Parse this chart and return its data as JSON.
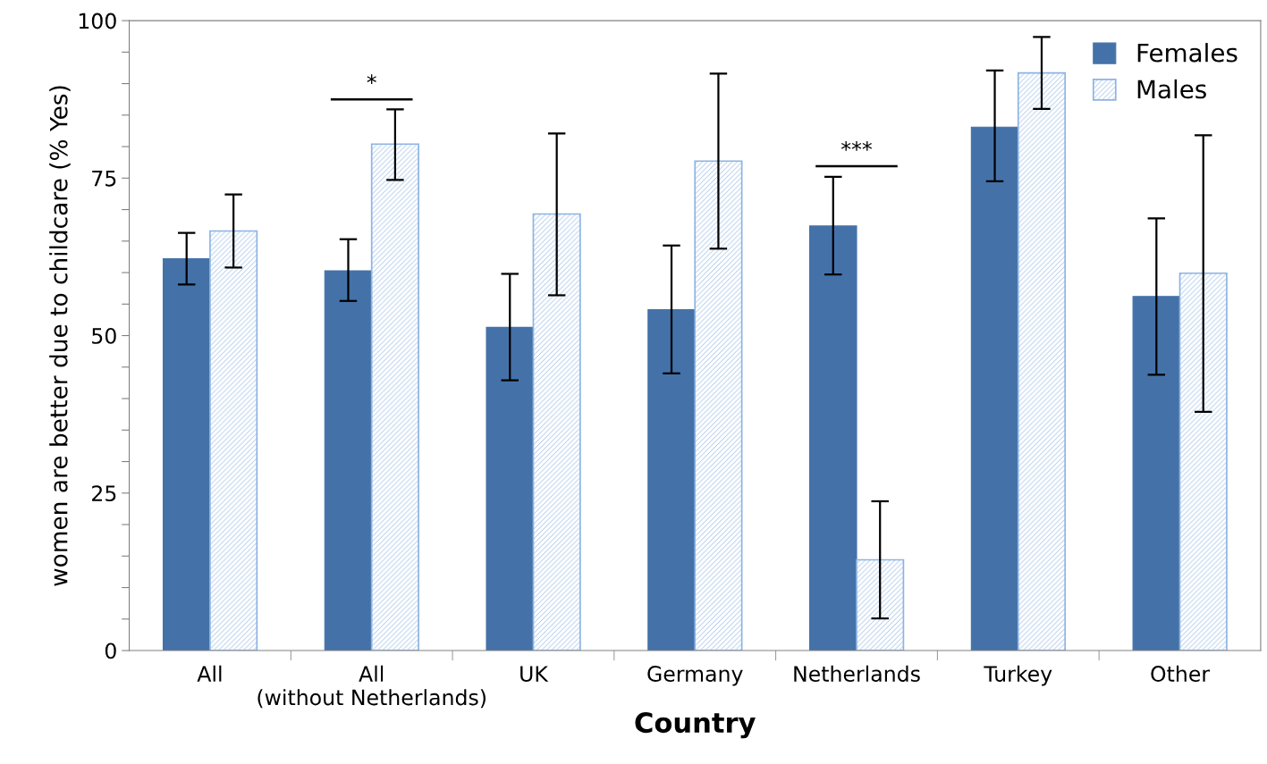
{
  "chart_data": {
    "type": "bar",
    "xlabel": "Country",
    "ylabel": "women are better due to childcare (% Yes)",
    "categories": [
      "All",
      "All\n(without Netherlands)",
      "UK",
      "Germany",
      "Netherlands",
      "Turkey",
      "Other"
    ],
    "series": [
      {
        "name": "Females",
        "color": "#4472a8",
        "values": [
          62.2,
          60.3,
          51.3,
          54.1,
          67.4,
          83.1,
          56.2
        ],
        "errors": [
          [
            58.1,
            66.3
          ],
          [
            55.5,
            65.3
          ],
          [
            42.9,
            59.8
          ],
          [
            44.0,
            64.3
          ],
          [
            59.7,
            75.2
          ],
          [
            74.5,
            92.1
          ],
          [
            43.8,
            68.6
          ]
        ]
      },
      {
        "name": "Males",
        "color": "#8db3e2",
        "values": [
          66.6,
          80.4,
          69.3,
          77.7,
          14.4,
          91.7,
          59.9
        ],
        "errors": [
          [
            60.8,
            72.4
          ],
          [
            74.7,
            85.9
          ],
          [
            56.4,
            82.1
          ],
          [
            63.8,
            91.6
          ],
          [
            5.1,
            23.7
          ],
          [
            86.0,
            97.4
          ],
          [
            37.9,
            81.8
          ]
        ]
      }
    ],
    "ylim": [
      0,
      100
    ],
    "yticks": [
      0,
      {
        "value": 5,
        "label": null
      },
      {
        "value": 10,
        "label": null
      },
      {
        "value": 15,
        "label": null
      },
      {
        "value": 20,
        "label": null
      },
      25,
      {
        "value": 30,
        "label": null
      },
      {
        "value": 35,
        "label": null
      },
      {
        "value": 40,
        "label": null
      },
      {
        "value": 45,
        "label": null
      },
      50,
      {
        "value": 55,
        "label": null
      },
      {
        "value": 60,
        "label": null
      },
      {
        "value": 65,
        "label": null
      },
      {
        "value": 70,
        "label": null
      },
      75,
      {
        "value": 80,
        "label": null
      },
      {
        "value": 85,
        "label": null
      },
      {
        "value": 90,
        "label": null
      },
      {
        "value": 95,
        "label": null
      },
      100
    ],
    "annotations": [
      "*",
      "***"
    ],
    "legend": "top right",
    "grid": false
  }
}
